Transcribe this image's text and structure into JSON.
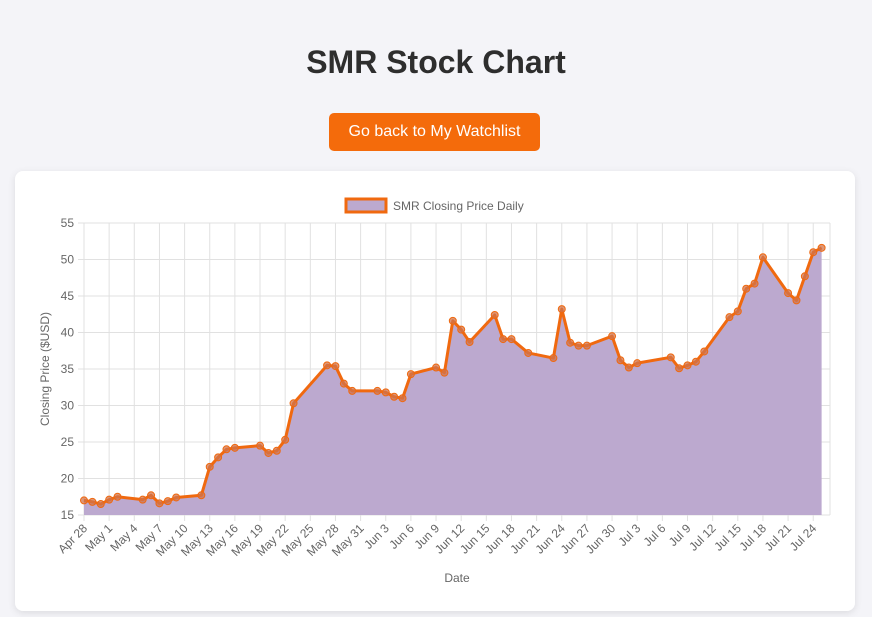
{
  "page": {
    "title": "SMR Stock Chart",
    "back_button_label": "Go back to My Watchlist"
  },
  "colors": {
    "accent": "#f46b0b",
    "line": "#f0690f",
    "area_fill": "#bca9cf",
    "point_fill": "#d1734a",
    "grid": "#e1e1e1"
  },
  "chart_data": {
    "type": "area",
    "title": "",
    "xlabel": "Date",
    "ylabel": "Closing Price ($USD)",
    "ylim": [
      15,
      55
    ],
    "yticks": [
      15,
      20,
      25,
      30,
      35,
      40,
      45,
      50,
      55
    ],
    "xlim": [
      "2024-04-28",
      "2024-07-26"
    ],
    "xtick_dates": [
      "2024-04-28",
      "2024-05-01",
      "2024-05-04",
      "2024-05-07",
      "2024-05-10",
      "2024-05-13",
      "2024-05-16",
      "2024-05-19",
      "2024-05-22",
      "2024-05-25",
      "2024-05-28",
      "2024-05-31",
      "2024-06-03",
      "2024-06-06",
      "2024-06-09",
      "2024-06-12",
      "2024-06-15",
      "2024-06-18",
      "2024-06-21",
      "2024-06-24",
      "2024-06-27",
      "2024-06-30",
      "2024-07-03",
      "2024-07-06",
      "2024-07-09",
      "2024-07-12",
      "2024-07-15",
      "2024-07-18",
      "2024-07-21",
      "2024-07-24"
    ],
    "xtick_labels": [
      "Apr 28",
      "May 1",
      "May 4",
      "May 7",
      "May 10",
      "May 13",
      "May 16",
      "May 19",
      "May 22",
      "May 25",
      "May 28",
      "May 31",
      "Jun 3",
      "Jun 6",
      "Jun 9",
      "Jun 12",
      "Jun 15",
      "Jun 18",
      "Jun 21",
      "Jun 24",
      "Jun 27",
      "Jun 30",
      "Jul 3",
      "Jul 6",
      "Jul 9",
      "Jul 12",
      "Jul 15",
      "Jul 18",
      "Jul 21",
      "Jul 24"
    ],
    "grid": true,
    "legend_position": "top",
    "series": [
      {
        "name": "SMR Closing Price Daily",
        "points": [
          [
            "2024-04-28",
            17.0
          ],
          [
            "2024-04-29",
            16.8
          ],
          [
            "2024-04-30",
            16.5
          ],
          [
            "2024-05-01",
            17.1
          ],
          [
            "2024-05-02",
            17.5
          ],
          [
            "2024-05-05",
            17.1
          ],
          [
            "2024-05-06",
            17.7
          ],
          [
            "2024-05-07",
            16.6
          ],
          [
            "2024-05-08",
            16.9
          ],
          [
            "2024-05-09",
            17.4
          ],
          [
            "2024-05-12",
            17.7
          ],
          [
            "2024-05-13",
            21.6
          ],
          [
            "2024-05-14",
            22.9
          ],
          [
            "2024-05-15",
            24.0
          ],
          [
            "2024-05-16",
            24.2
          ],
          [
            "2024-05-19",
            24.5
          ],
          [
            "2024-05-20",
            23.5
          ],
          [
            "2024-05-21",
            23.8
          ],
          [
            "2024-05-22",
            25.3
          ],
          [
            "2024-05-23",
            30.3
          ],
          [
            "2024-05-27",
            35.5
          ],
          [
            "2024-05-28",
            35.4
          ],
          [
            "2024-05-29",
            33.0
          ],
          [
            "2024-05-30",
            32.0
          ],
          [
            "2024-06-02",
            32.0
          ],
          [
            "2024-06-03",
            31.8
          ],
          [
            "2024-06-04",
            31.2
          ],
          [
            "2024-06-05",
            31.0
          ],
          [
            "2024-06-06",
            34.3
          ],
          [
            "2024-06-09",
            35.2
          ],
          [
            "2024-06-10",
            34.5
          ],
          [
            "2024-06-11",
            41.6
          ],
          [
            "2024-06-12",
            40.4
          ],
          [
            "2024-06-13",
            38.7
          ],
          [
            "2024-06-16",
            42.4
          ],
          [
            "2024-06-17",
            39.1
          ],
          [
            "2024-06-18",
            39.1
          ],
          [
            "2024-06-20",
            37.2
          ],
          [
            "2024-06-23",
            36.5
          ],
          [
            "2024-06-24",
            43.2
          ],
          [
            "2024-06-25",
            38.6
          ],
          [
            "2024-06-26",
            38.2
          ],
          [
            "2024-06-27",
            38.2
          ],
          [
            "2024-06-30",
            39.5
          ],
          [
            "2024-07-01",
            36.2
          ],
          [
            "2024-07-02",
            35.2
          ],
          [
            "2024-07-03",
            35.8
          ],
          [
            "2024-07-07",
            36.6
          ],
          [
            "2024-07-08",
            35.1
          ],
          [
            "2024-07-09",
            35.5
          ],
          [
            "2024-07-10",
            36.0
          ],
          [
            "2024-07-11",
            37.4
          ],
          [
            "2024-07-14",
            42.1
          ],
          [
            "2024-07-15",
            42.9
          ],
          [
            "2024-07-16",
            46.0
          ],
          [
            "2024-07-17",
            46.7
          ],
          [
            "2024-07-18",
            50.3
          ],
          [
            "2024-07-21",
            45.4
          ],
          [
            "2024-07-22",
            44.4
          ],
          [
            "2024-07-23",
            47.7
          ],
          [
            "2024-07-24",
            51.0
          ],
          [
            "2024-07-25",
            51.6
          ]
        ]
      }
    ]
  }
}
